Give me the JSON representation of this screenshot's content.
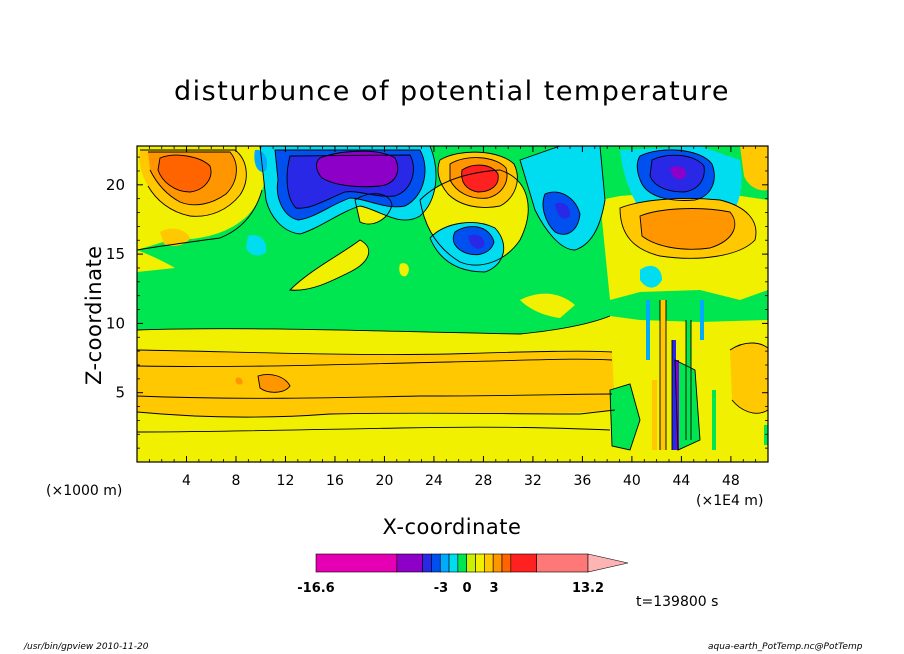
{
  "chart_data": {
    "type": "heatmap",
    "title": "disturbunce of potential temperature",
    "xlabel": "X-coordinate",
    "ylabel": "Z-coordinate",
    "x_unit_left": "(×1000 m)",
    "x_unit_right": "(×1E4 m)",
    "x_ticks": [
      4,
      8,
      12,
      16,
      20,
      24,
      28,
      32,
      36,
      40,
      44,
      48
    ],
    "y_ticks": [
      5,
      10,
      15,
      20
    ],
    "xlim": [
      0,
      51
    ],
    "ylim": [
      0,
      22.8
    ],
    "colorbar": {
      "min_label": "-16.6",
      "max_label": "13.2",
      "mid_labels": [
        "-3",
        "0",
        "3"
      ],
      "colors": [
        "#e600b4",
        "#8c00c8",
        "#2828e6",
        "#0050f0",
        "#00aaff",
        "#00dcf0",
        "#00e650",
        "#c8f000",
        "#f0f000",
        "#ffc800",
        "#ff9600",
        "#ff6400",
        "#ff2020",
        "#ff7878",
        "#ffb4b4"
      ]
    },
    "fields": [
      {
        "level": "warm",
        "x": 4,
        "z": 20.5,
        "value": 3
      },
      {
        "level": "cold",
        "x": 18.5,
        "z": 21.2,
        "value": -10
      },
      {
        "level": "warm",
        "x": 27.5,
        "z": 20.6,
        "value": 6
      },
      {
        "level": "cold",
        "x": 27,
        "z": 15.7,
        "value": -4
      },
      {
        "level": "cold",
        "x": 34,
        "z": 18.2,
        "value": -5
      },
      {
        "level": "cold",
        "x": 44,
        "z": 20.8,
        "value": -9
      },
      {
        "level": "warm",
        "x": 44,
        "z": 17,
        "value": 3
      },
      {
        "level": "warm",
        "x": 20,
        "z": 6,
        "value": 1.5
      }
    ]
  },
  "timestamp": "t=139800 s",
  "footer_left": "/usr/bin/gpview  2010-11-20",
  "footer_right": "aqua-earth_PotTemp.nc@PotTemp"
}
